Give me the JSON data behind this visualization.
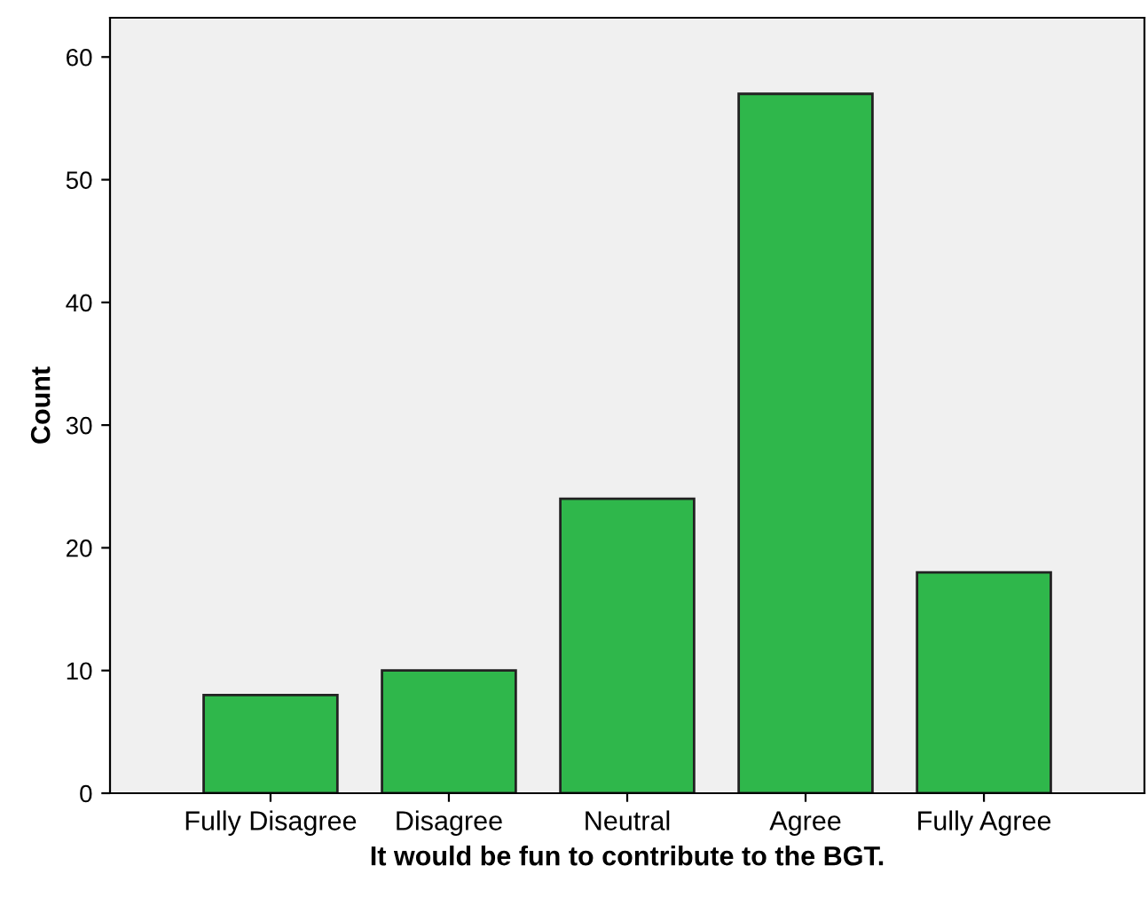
{
  "chart_data": {
    "type": "bar",
    "xlabel": "It would be fun to contribute to the BGT.",
    "ylabel": "Count",
    "categories": [
      "Fully Disagree",
      "Disagree",
      "Neutral",
      "Agree",
      "Fully Agree"
    ],
    "values": [
      8,
      10,
      24,
      57,
      18
    ],
    "color": "#2fb74b",
    "ylim": [
      0,
      63.2
    ],
    "yticks": [
      0,
      10,
      20,
      30,
      40,
      50,
      60
    ],
    "grid": false
  }
}
